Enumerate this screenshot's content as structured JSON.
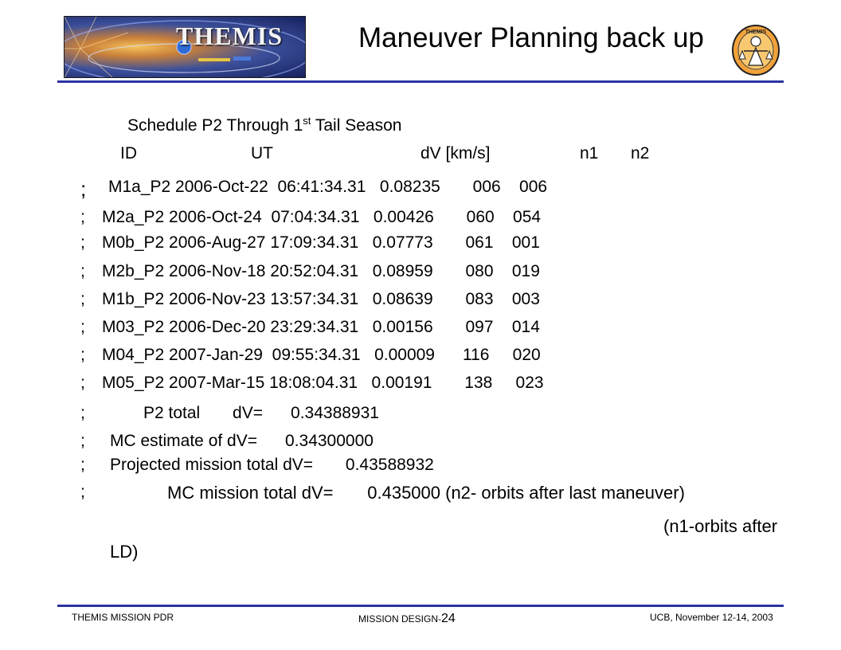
{
  "header": {
    "logo_text": "THEMIS",
    "title": "Maneuver Planning back up",
    "seal_text": "THEMIS"
  },
  "content": {
    "heading_main": "Schedule P2 Through 1",
    "heading_sup": "st",
    "heading_tail": " Tail Season",
    "columns": {
      "id": "ID",
      "ut": "UT",
      "dv": "dV [km/s]",
      "n1": "n1",
      "n2": "n2"
    },
    "rows": [
      {
        "prefix": ";",
        "text": "M1a_P2 2006-Oct-22  06:41:34.31   0.08235       006    006"
      },
      {
        "prefix": ";",
        "text": "M2a_P2 2006-Oct-24  07:04:34.31   0.00426       060    054"
      },
      {
        "prefix": ";",
        "text": "M0b_P2 2006-Aug-27 17:09:34.31   0.07773       061    001"
      },
      {
        "prefix": ";",
        "text": "M2b_P2 2006-Nov-18 20:52:04.31   0.08959       080    019"
      },
      {
        "prefix": ";",
        "text": "M1b_P2 2006-Nov-23 13:57:34.31   0.08639       083    003"
      },
      {
        "prefix": ";",
        "text": "M03_P2 2006-Dec-20 23:29:34.31   0.00156       097    014"
      },
      {
        "prefix": ";",
        "text": "M04_P2 2007-Jan-29  09:55:34.31   0.00009      116     020"
      },
      {
        "prefix": ";",
        "text": "M05_P2 2007-Mar-15 18:08:04.31   0.00191       138     023"
      }
    ],
    "summary": [
      {
        "prefix": ";",
        "text": "P2 total       dV=      0.34388931"
      },
      {
        "prefix": ";",
        "text": "MC estimate of dV=      0.34300000"
      },
      {
        "prefix": ";",
        "text": "Projected mission total dV=       0.43588932"
      },
      {
        "prefix": ";",
        "text": "MC mission total dV=       0.435000 (n2- orbits after last maneuver)"
      }
    ],
    "note_line1": "(n1-orbits after",
    "note_line2": "LD)"
  },
  "footer": {
    "left": "THEMIS MISSION PDR",
    "center": "MISSION DESIGN-",
    "page": "24",
    "right": "UCB, November 12-14, 2003"
  }
}
